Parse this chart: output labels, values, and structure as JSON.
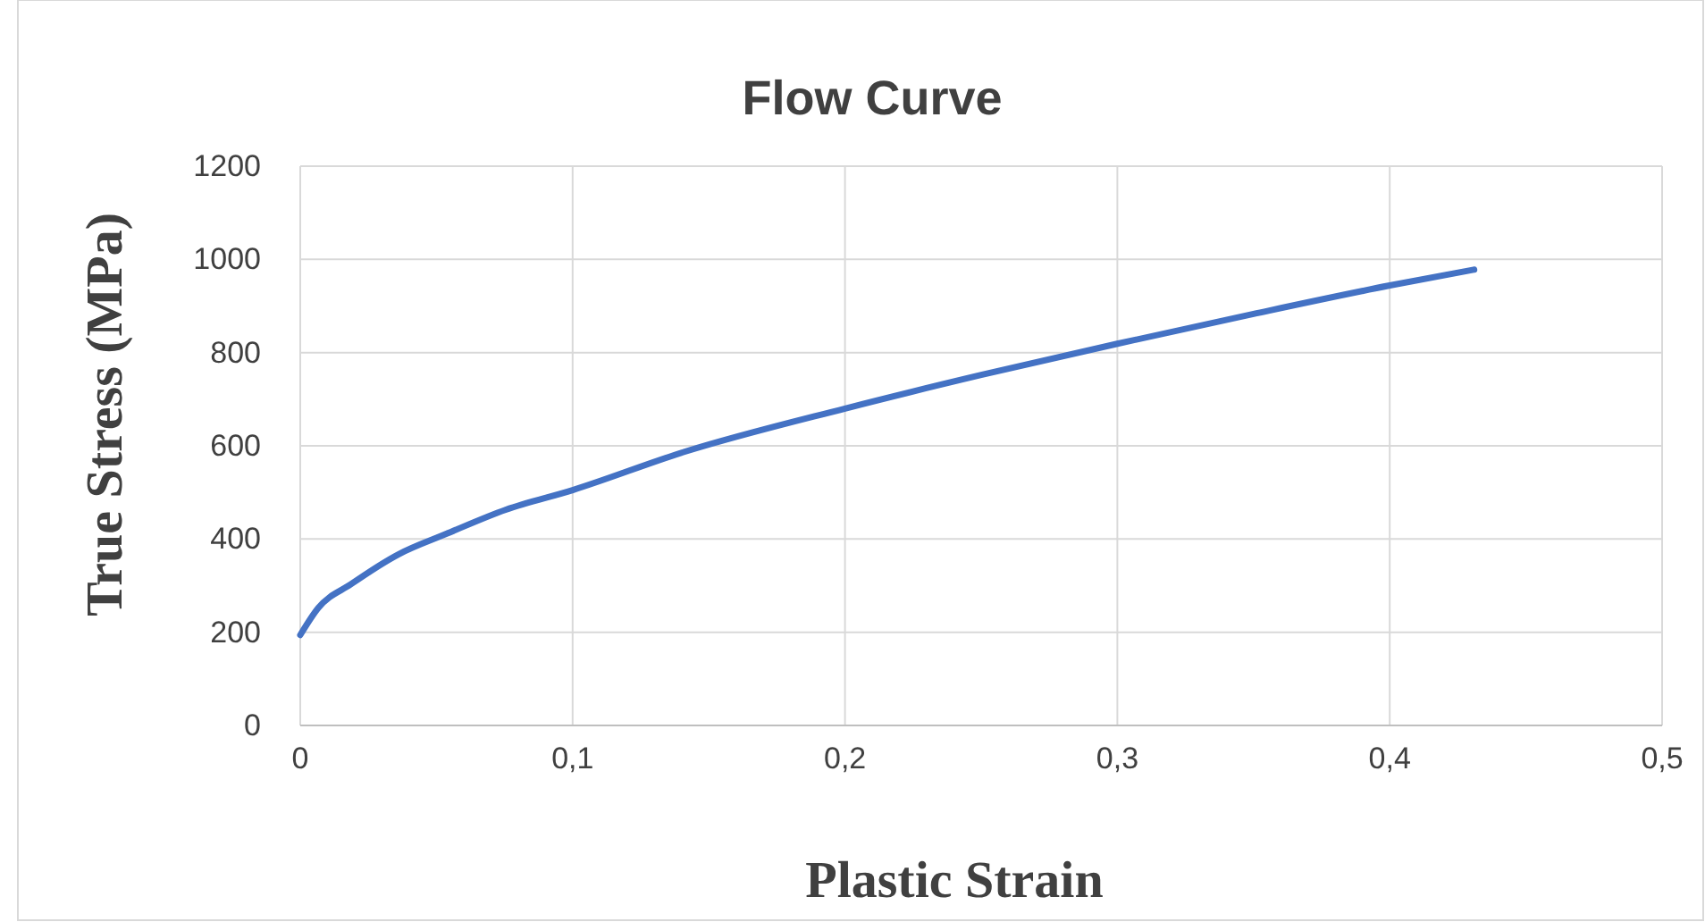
{
  "chart_data": {
    "type": "line",
    "title": "Flow Curve",
    "xlabel": "Plastic Strain",
    "ylabel": "True Stress (MPa)",
    "x": [
      0,
      0.0066,
      0.0186,
      0.036,
      0.0536,
      0.0755,
      0.1,
      0.141,
      0.2,
      0.25,
      0.3,
      0.35,
      0.4,
      0.431
    ],
    "series": [
      {
        "color": "#4472c4",
        "values": [
          194,
          252,
          303,
          367,
          411,
          463,
          505,
          587,
          680,
          752,
          819,
          883,
          944,
          978
        ]
      }
    ],
    "xlim": [
      0,
      0.5
    ],
    "xticks": [
      0,
      {
        "value": 0.1,
        "label": "0,1"
      },
      {
        "value": 0.2,
        "label": "0,2"
      },
      {
        "value": 0.3,
        "label": "0,3"
      },
      {
        "value": 0.4,
        "label": "0,4"
      },
      {
        "value": 0.5,
        "label": "0,5"
      }
    ],
    "ylim": [
      0,
      1200
    ],
    "yticks": [
      0,
      200,
      400,
      600,
      800,
      1000,
      1200
    ],
    "grid": true,
    "marker": "none",
    "line_style": "solid"
  }
}
